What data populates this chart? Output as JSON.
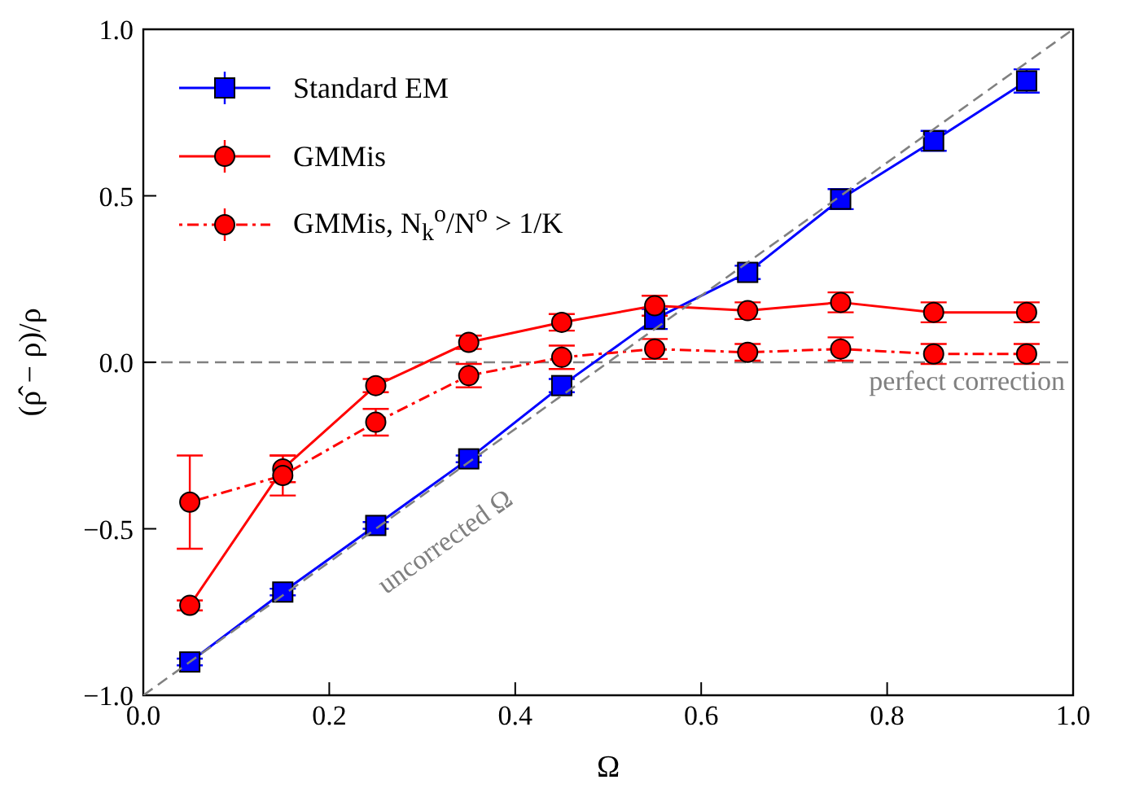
{
  "chart_data": {
    "type": "line",
    "xlabel": "Ω",
    "ylabel": "(ρ̂ − ρ)/ρ",
    "x": [
      0.05,
      0.15,
      0.25,
      0.35,
      0.45,
      0.55,
      0.65,
      0.75,
      0.85,
      0.95
    ],
    "series": [
      {
        "name": "Standard EM",
        "color": "#0000ff",
        "marker": "square",
        "line_style": "solid",
        "values": [
          -0.9,
          -0.69,
          -0.49,
          -0.29,
          -0.07,
          0.13,
          0.27,
          0.49,
          0.665,
          0.845
        ],
        "errors": [
          0.01,
          0.01,
          0.01,
          0.01,
          0.02,
          0.03,
          0.02,
          0.03,
          0.03,
          0.035
        ]
      },
      {
        "name": "GMMis",
        "color": "#ff0000",
        "marker": "circle",
        "line_style": "solid",
        "values": [
          -0.73,
          -0.32,
          -0.07,
          0.06,
          0.12,
          0.17,
          0.155,
          0.18,
          0.15,
          0.15
        ],
        "errors": [
          0.015,
          0.04,
          0.02,
          0.02,
          0.025,
          0.03,
          0.025,
          0.03,
          0.03,
          0.03
        ]
      },
      {
        "name": "GMMis, N$_{k}$$^{o}$/N$^{o}$ > 1/K",
        "color": "#ff0000",
        "marker": "circle",
        "line_style": "dotted",
        "values": [
          -0.42,
          -0.34,
          -0.18,
          -0.04,
          0.015,
          0.04,
          0.03,
          0.04,
          0.025,
          0.025
        ],
        "errors": [
          0.14,
          0.06,
          0.04,
          0.035,
          0.035,
          0.03,
          0.025,
          0.035,
          0.03,
          0.03
        ]
      },
      {
        "x": [
          0,
          1
        ],
        "color": "#808080",
        "marker": "none",
        "line_style": "dashed",
        "values": [
          -1,
          1
        ]
      }
    ],
    "xlim": [
      0,
      1
    ],
    "xticks": [
      {
        "value": 0,
        "label": "0.0"
      },
      {
        "value": 0.2,
        "label": "0.2"
      },
      {
        "value": 0.4,
        "label": "0.4"
      },
      {
        "value": 0.6,
        "label": "0.6"
      },
      {
        "value": 0.8,
        "label": "0.8"
      },
      {
        "value": 1,
        "label": "1.0"
      }
    ],
    "ylim": [
      -1,
      1
    ],
    "yticks": [
      {
        "value": -1,
        "label": "−1.0"
      },
      {
        "value": -0.5,
        "label": "−0.5"
      },
      {
        "value": 0,
        "label": "0.0"
      },
      {
        "value": 0.5,
        "label": "0.5"
      },
      {
        "value": 1,
        "label": "1.0"
      }
    ],
    "ref_lines": [
      {
        "axis": "y",
        "value": 0,
        "label": "perfect correction",
        "color": "#808080",
        "line_style": "dashed"
      }
    ],
    "annotations": [
      "uncorrected Ω"
    ],
    "legend": "top left",
    "grid": false
  }
}
